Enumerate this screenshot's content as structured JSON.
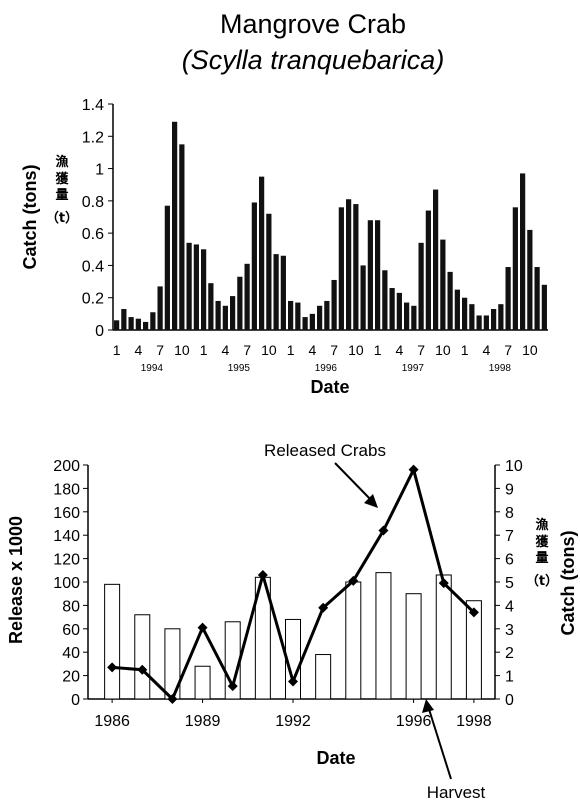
{
  "chart_data": [
    {
      "type": "bar",
      "title": "Mangrove Crab",
      "subtitle": "(Scylla tranquebarica)",
      "xlabel": "Date",
      "ylabel": "Catch (tons)",
      "ylabel_cjk": [
        "漁",
        "獲",
        "量",
        "（t）"
      ],
      "ylim": [
        0,
        1.4
      ],
      "yticks": [
        "0",
        "0.2",
        "0.4",
        "0.6",
        "0.8",
        "1",
        "1.2",
        "1.4"
      ],
      "month_ticks": [
        "1",
        "4",
        "7",
        "10",
        "1",
        "4",
        "7",
        "10",
        "1",
        "4",
        "7",
        "10",
        "1",
        "4",
        "7",
        "10",
        "1",
        "4",
        "7",
        "10"
      ],
      "year_labels": [
        "1994",
        "1995",
        "1996",
        "1997",
        "1998"
      ],
      "grid": false,
      "values": [
        0.06,
        0.13,
        0.08,
        0.07,
        0.05,
        0.11,
        0.27,
        0.77,
        1.29,
        1.15,
        0.54,
        0.53,
        0.5,
        0.29,
        0.18,
        0.15,
        0.21,
        0.33,
        0.41,
        0.79,
        0.95,
        0.72,
        0.47,
        0.46,
        0.18,
        0.17,
        0.08,
        0.1,
        0.15,
        0.18,
        0.31,
        0.76,
        0.81,
        0.78,
        0.4,
        0.68,
        0.68,
        0.37,
        0.26,
        0.23,
        0.17,
        0.15,
        0.54,
        0.74,
        0.87,
        0.56,
        0.36,
        0.25,
        0.2,
        0.16,
        0.09,
        0.09,
        0.13,
        0.16,
        0.39,
        0.76,
        0.97,
        0.62,
        0.39,
        0.28
      ]
    },
    {
      "type": "bar+line",
      "xlabel": "Date",
      "ylabel_left": "Release x 1000",
      "ylabel_right": "Catch (tons)",
      "ylabel_right_cjk": [
        "漁",
        "獲",
        "量",
        "（t）"
      ],
      "ylim_left": [
        0,
        200
      ],
      "ylim_right": [
        0,
        10
      ],
      "yticks_left": [
        "0",
        "20",
        "40",
        "60",
        "80",
        "100",
        "120",
        "140",
        "160",
        "180",
        "200"
      ],
      "yticks_right": [
        "0",
        "1",
        "2",
        "3",
        "4",
        "5",
        "6",
        "7",
        "8",
        "9",
        "10"
      ],
      "xticks": [
        "1986",
        "1989",
        "1992",
        "1996",
        "1998"
      ],
      "x": [
        1986,
        1987,
        1988,
        1989,
        1990,
        1991,
        1992,
        1993,
        1994,
        1995,
        1996,
        1997,
        1998
      ],
      "series": [
        {
          "name": "Harvest",
          "axis": "right",
          "style": "open bars",
          "values": [
            4.9,
            3.6,
            3.0,
            1.4,
            3.3,
            5.2,
            3.4,
            1.9,
            5.0,
            5.4,
            4.5,
            5.3,
            4.2
          ]
        },
        {
          "name": "Released Crabs",
          "axis": "left",
          "style": "line with markers",
          "values": [
            27,
            25,
            0,
            61,
            11,
            106,
            15,
            78,
            101,
            144,
            196,
            99,
            74
          ]
        }
      ],
      "annotations": [
        "Released Crabs",
        "Harvest"
      ]
    }
  ]
}
